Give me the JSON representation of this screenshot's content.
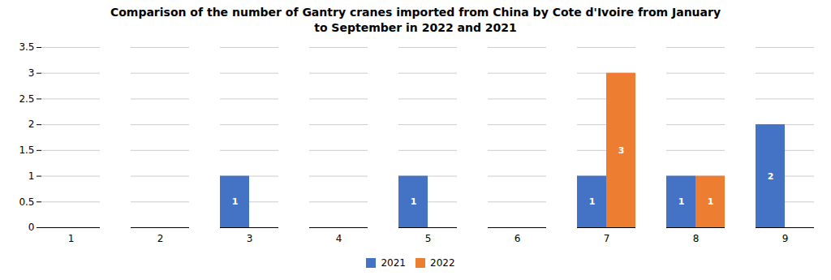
{
  "chart_data": {
    "type": "bar",
    "title": "Comparison of the number of Gantry cranes imported from China by Cote d'Ivoire from January\nto September in 2022 and 2021",
    "categories": [
      "1",
      "2",
      "3",
      "4",
      "5",
      "6",
      "7",
      "8",
      "9"
    ],
    "series": [
      {
        "name": "2021",
        "color": "#4472C4",
        "values": [
          0,
          0,
          1,
          0,
          1,
          0,
          1,
          1,
          2
        ]
      },
      {
        "name": "2022",
        "color": "#ED7D31",
        "values": [
          0,
          0,
          0,
          0,
          0,
          0,
          3,
          1,
          0
        ]
      }
    ],
    "ylim": [
      0,
      3.5
    ],
    "yticks": [
      0,
      0.5,
      1,
      1.5,
      2,
      2.5,
      3,
      3.5
    ],
    "grid": true,
    "legend": "bottom",
    "data_labels": true
  }
}
